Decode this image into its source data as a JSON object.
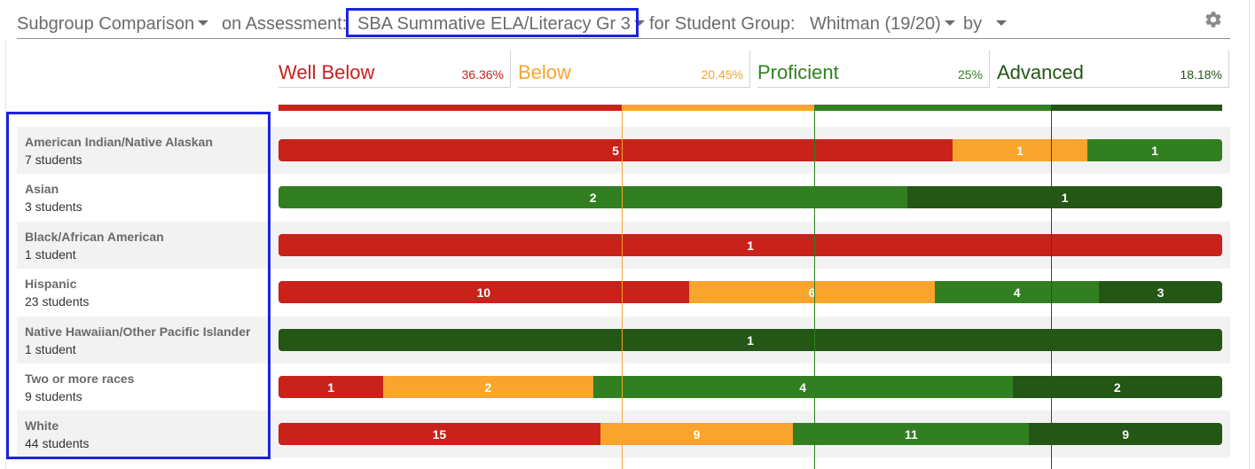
{
  "header": {
    "report_type": "Subgroup Comparison",
    "on_assessment": "on Assessment:",
    "assessment": "SBA Summative ELA/Literacy Gr 3",
    "for_group": "for Student Group:",
    "student_group": "Whitman (19/20)",
    "by": "by",
    "icons": {
      "settings": "gear-icon",
      "dropdown": "caret-down-icon"
    }
  },
  "levels": [
    {
      "name": "Well Below",
      "pct": "36.36%",
      "color": "#c8221b"
    },
    {
      "name": "Below",
      "pct": "20.45%",
      "color": "#f9a42c"
    },
    {
      "name": "Proficient",
      "pct": "25%",
      "color": "#327f22"
    },
    {
      "name": "Advanced",
      "pct": "18.18%",
      "color": "#245616"
    }
  ],
  "rows": [
    {
      "name": "American Indian/Native Alaskan",
      "count": "7 students",
      "segments": [
        {
          "level": 0,
          "value": 5
        },
        {
          "level": 1,
          "value": 1
        },
        {
          "level": 2,
          "value": 1
        }
      ]
    },
    {
      "name": "Asian",
      "count": "3 students",
      "segments": [
        {
          "level": 2,
          "value": 2
        },
        {
          "level": 3,
          "value": 1
        }
      ]
    },
    {
      "name": "Black/African American",
      "count": "1 student",
      "segments": [
        {
          "level": 0,
          "value": 1
        }
      ]
    },
    {
      "name": "Hispanic",
      "count": "23 students",
      "segments": [
        {
          "level": 0,
          "value": 10
        },
        {
          "level": 1,
          "value": 6
        },
        {
          "level": 2,
          "value": 4
        },
        {
          "level": 3,
          "value": 3
        }
      ]
    },
    {
      "name": "Native Hawaiian/Other Pacific Islander",
      "count": "1 student",
      "segments": [
        {
          "level": 3,
          "value": 1
        }
      ]
    },
    {
      "name": "Two or more races",
      "count": "9 students",
      "segments": [
        {
          "level": 0,
          "value": 1
        },
        {
          "level": 1,
          "value": 2
        },
        {
          "level": 2,
          "value": 4
        },
        {
          "level": 3,
          "value": 2
        }
      ]
    },
    {
      "name": "White",
      "count": "44 students",
      "segments": [
        {
          "level": 0,
          "value": 15
        },
        {
          "level": 1,
          "value": 9
        },
        {
          "level": 2,
          "value": 11
        },
        {
          "level": 3,
          "value": 9
        }
      ]
    }
  ]
}
